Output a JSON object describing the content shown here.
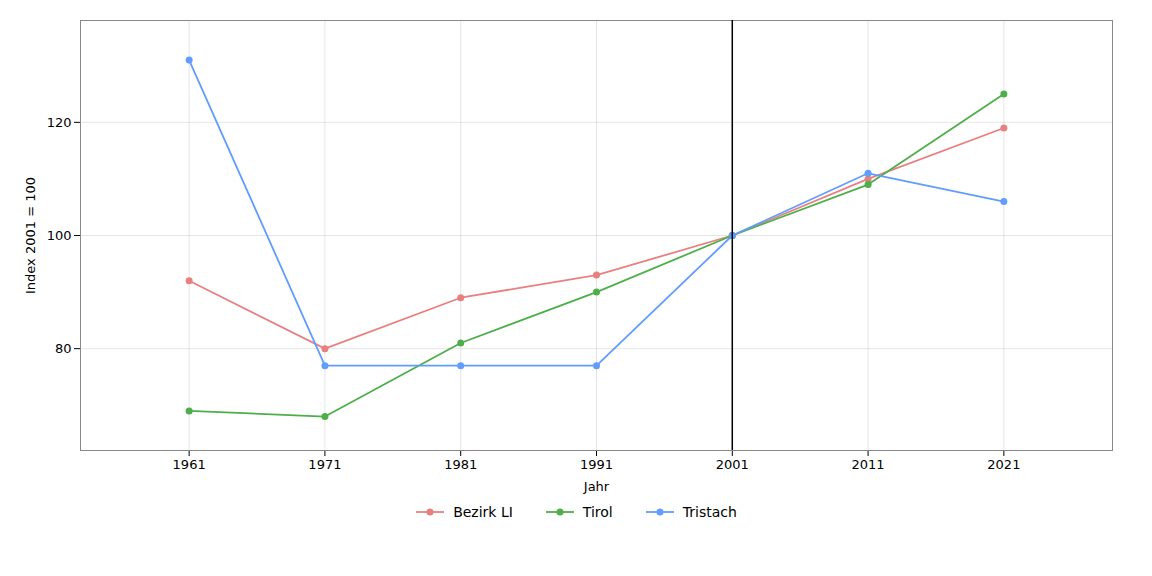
{
  "chart_data": {
    "type": "line",
    "x_label": "Jahr",
    "y_label": "Index 2001 = 100",
    "x": [
      1961,
      1971,
      1981,
      1991,
      2001,
      2011,
      2021
    ],
    "series": [
      {
        "name": "Bezirk LI",
        "color": "#E88080",
        "values": [
          92,
          80,
          89,
          93,
          100,
          110,
          119
        ]
      },
      {
        "name": "Tirol",
        "color": "#4DAF4A",
        "values": [
          69,
          68,
          81,
          90,
          100,
          109,
          125
        ]
      },
      {
        "name": "Tristach",
        "color": "#619CFF",
        "values": [
          131,
          77,
          77,
          77,
          100,
          111,
          106
        ]
      }
    ],
    "xlim": [
      1953,
      2029
    ],
    "xticks": [
      1961,
      1971,
      1981,
      1991,
      2001,
      2011,
      2021
    ],
    "ylim": [
      62,
      138
    ],
    "yticks": [
      80,
      100,
      120
    ],
    "vlines": [
      2001
    ],
    "grid": true,
    "legend": "bottom",
    "marker": "circle"
  }
}
